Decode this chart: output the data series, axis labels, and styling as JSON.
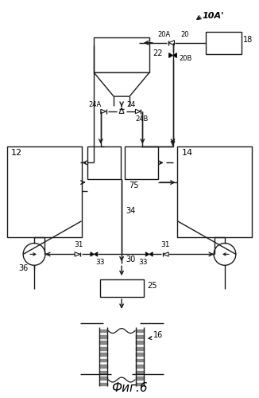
{
  "title": "Фиг.6",
  "label_10A": "10A'",
  "label_18": "18",
  "label_20": "20",
  "label_20A": "20A",
  "label_20B": "20B",
  "label_22": "22",
  "label_24": "24",
  "label_24A": "24A",
  "label_24B": "24B",
  "label_75": "75",
  "label_34": "34",
  "label_12": "12",
  "label_14": "14",
  "label_31": "31",
  "label_33": "33",
  "label_36": "36",
  "label_30": "30",
  "label_25": "25",
  "label_16": "16",
  "bg_color": "#ffffff",
  "line_color": "#1a1a1a",
  "figsize": [
    3.26,
    5.0
  ],
  "dpi": 100
}
